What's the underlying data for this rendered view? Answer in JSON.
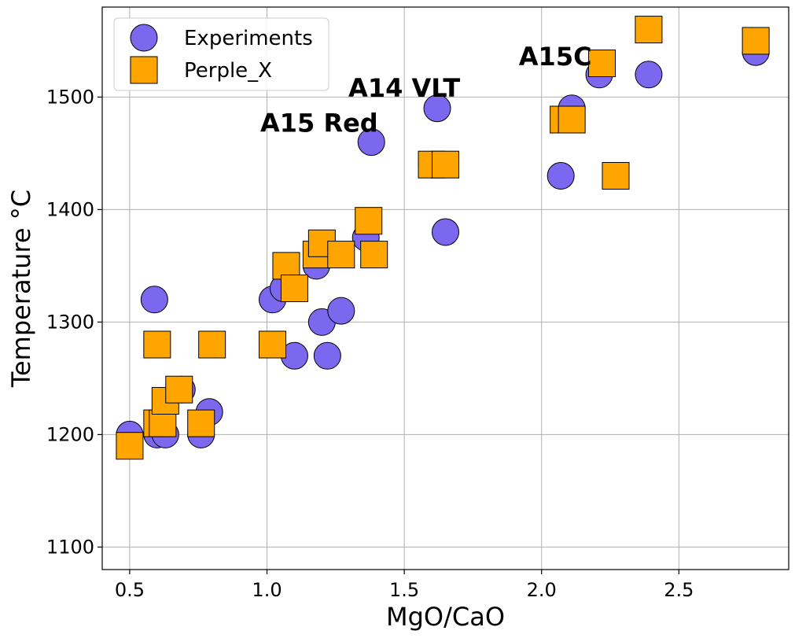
{
  "chart_data": {
    "type": "scatter",
    "title": "",
    "xlabel": "MgO/CaO",
    "ylabel": "Temperature °C",
    "xlim": [
      0.4,
      2.9
    ],
    "ylim": [
      1080,
      1580
    ],
    "xticks": [
      0.5,
      1.0,
      1.5,
      2.0,
      2.5
    ],
    "xtick_labels": [
      "0.5",
      "1.0",
      "1.5",
      "2.0",
      "2.5"
    ],
    "yticks": [
      1100,
      1200,
      1300,
      1400,
      1500
    ],
    "ytick_labels": [
      "1100",
      "1200",
      "1300",
      "1400",
      "1500"
    ],
    "grid": true,
    "legend": "top-left",
    "series": [
      {
        "name": "Experiments",
        "marker": "circle",
        "color": "#7B68EE",
        "points": [
          [
            0.5,
            1200
          ],
          [
            0.6,
            1200
          ],
          [
            0.63,
            1200
          ],
          [
            0.59,
            1320
          ],
          [
            0.79,
            1220
          ],
          [
            0.76,
            1200
          ],
          [
            0.69,
            1240
          ],
          [
            1.02,
            1320
          ],
          [
            1.06,
            1330
          ],
          [
            1.1,
            1270
          ],
          [
            1.18,
            1350
          ],
          [
            1.2,
            1300
          ],
          [
            1.22,
            1270
          ],
          [
            1.27,
            1310
          ],
          [
            1.36,
            1375
          ],
          [
            1.38,
            1460
          ],
          [
            1.62,
            1490
          ],
          [
            1.65,
            1380
          ],
          [
            1.6,
            1440
          ],
          [
            2.07,
            1430
          ],
          [
            2.11,
            1490
          ],
          [
            2.21,
            1520
          ],
          [
            2.27,
            1430
          ],
          [
            2.39,
            1520
          ],
          [
            2.78,
            1540
          ]
        ]
      },
      {
        "name": "Perple_X",
        "marker": "square",
        "color": "#FFA500",
        "points": [
          [
            0.5,
            1190
          ],
          [
            0.6,
            1210
          ],
          [
            0.62,
            1210
          ],
          [
            0.63,
            1230
          ],
          [
            0.68,
            1240
          ],
          [
            0.6,
            1280
          ],
          [
            0.8,
            1280
          ],
          [
            0.76,
            1210
          ],
          [
            1.02,
            1280
          ],
          [
            1.07,
            1350
          ],
          [
            1.1,
            1330
          ],
          [
            1.18,
            1360
          ],
          [
            1.2,
            1370
          ],
          [
            1.27,
            1360
          ],
          [
            1.37,
            1390
          ],
          [
            1.39,
            1360
          ],
          [
            1.6,
            1440
          ],
          [
            1.65,
            1440
          ],
          [
            2.08,
            1480
          ],
          [
            2.11,
            1480
          ],
          [
            2.22,
            1530
          ],
          [
            2.27,
            1430
          ],
          [
            2.39,
            1560
          ],
          [
            2.78,
            1550
          ]
        ]
      }
    ],
    "annotations": [
      {
        "text": "A14 VLT",
        "x": 1.5,
        "y": 1508
      },
      {
        "text": "A15 Red",
        "x": 1.19,
        "y": 1477
      },
      {
        "text": "A15C",
        "x": 2.05,
        "y": 1536
      }
    ]
  }
}
